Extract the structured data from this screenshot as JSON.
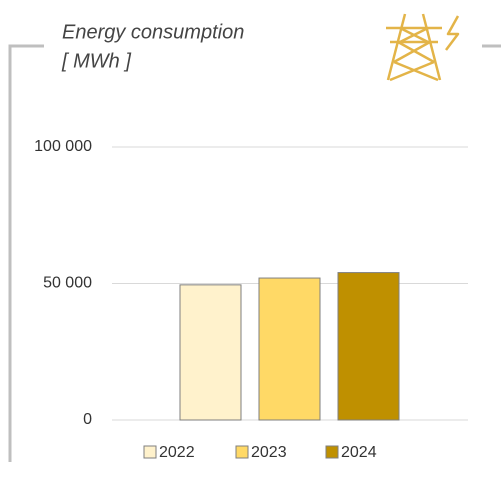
{
  "chart_data": {
    "type": "bar",
    "title": "Energy consumption",
    "unit": "[ MWh ]",
    "categories": [
      null
    ],
    "series": [
      {
        "name": "2022",
        "color": "#fff2cc",
        "values": [
          49500
        ]
      },
      {
        "name": "2023",
        "color": "#ffd966",
        "values": [
          52000
        ]
      },
      {
        "name": "2024",
        "color": "#bf9000",
        "values": [
          54000
        ]
      }
    ],
    "ylim": [
      0,
      100000
    ],
    "yticks": [
      0,
      {
        "value": 50000,
        "label": "50 000"
      },
      {
        "value": 100000,
        "label": "100 000"
      }
    ],
    "grid": true,
    "legend": "bottom"
  }
}
